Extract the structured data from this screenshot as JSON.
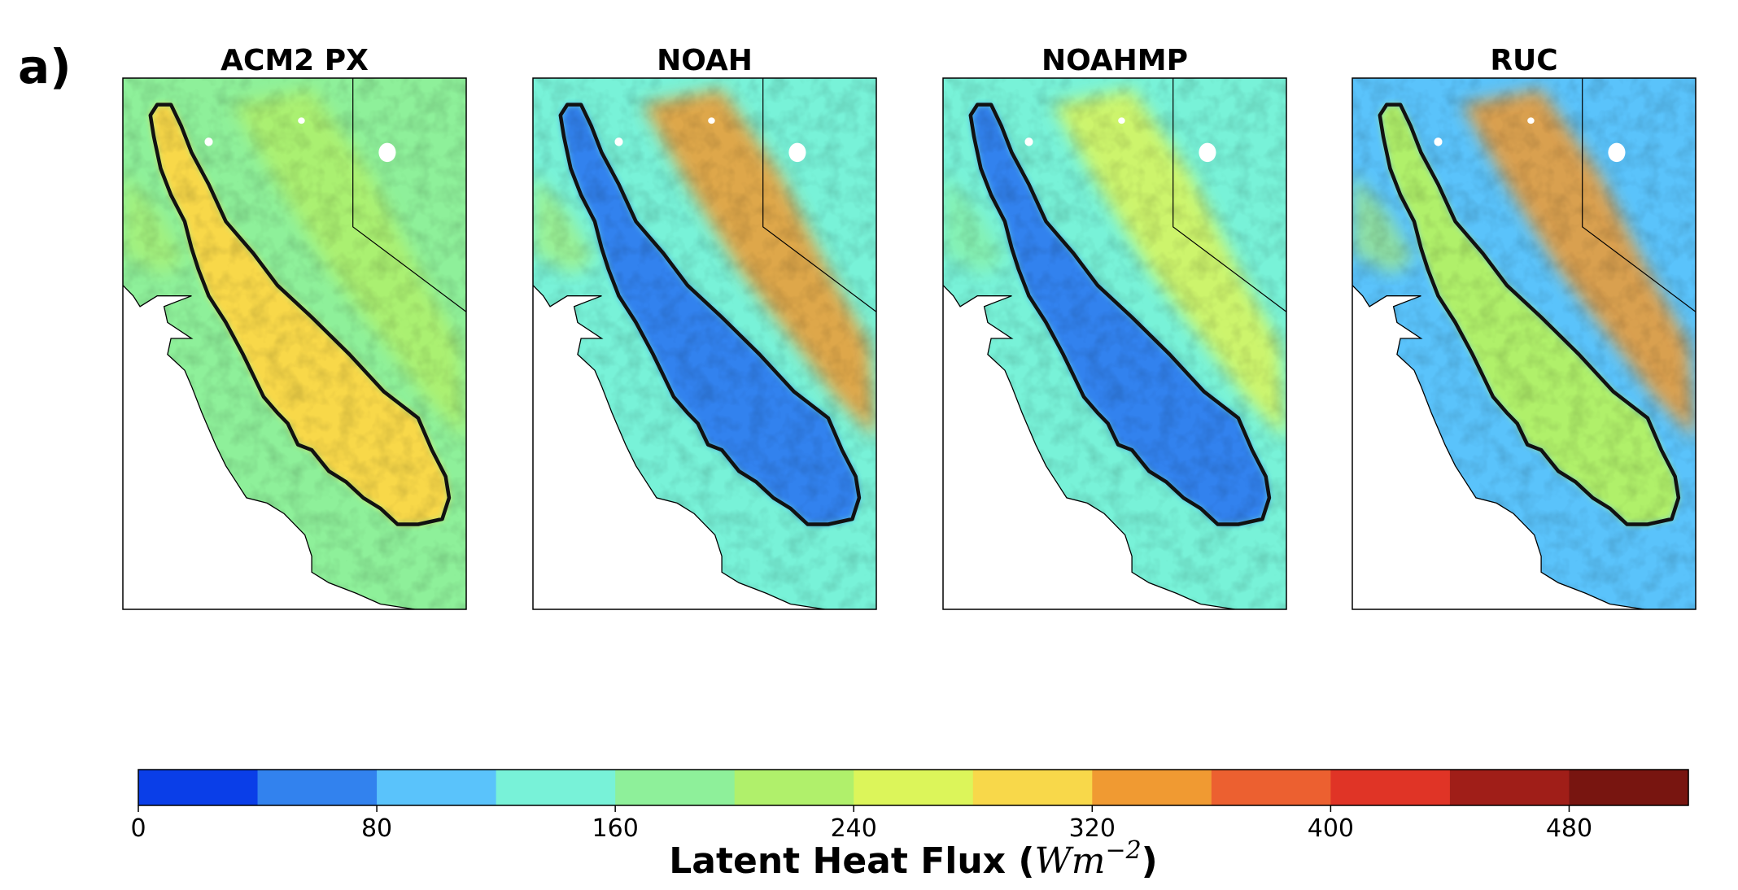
{
  "panel_label": "a)",
  "chart_data": {
    "type": "heatmap",
    "panels": [
      {
        "title": "ACM2 PX",
        "mean_valley_flux": 300,
        "mean_land_flux": 190,
        "mean_mountain_flux": 230
      },
      {
        "title": "NOAH",
        "mean_valley_flux": 70,
        "mean_land_flux": 140,
        "mean_mountain_flux": 330
      },
      {
        "title": "NOAHMP",
        "mean_valley_flux": 40,
        "mean_land_flux": 120,
        "mean_mountain_flux": 260
      },
      {
        "title": "RUC",
        "mean_valley_flux": 220,
        "mean_land_flux": 115,
        "mean_mountain_flux": 345
      }
    ],
    "colorbar": {
      "label": "Latent Heat Flux",
      "unit": "Wm",
      "unit_exponent": "−2",
      "min": 0,
      "max": 520,
      "levels": [
        0,
        40,
        80,
        120,
        160,
        200,
        240,
        280,
        320,
        360,
        400,
        440,
        480,
        520
      ],
      "tick_values": [
        0,
        80,
        160,
        240,
        320,
        400,
        480
      ],
      "tick_labels": [
        "0",
        "80",
        "160",
        "240",
        "320",
        "400",
        "480"
      ],
      "colors": [
        "#0a3ee8",
        "#3282ee",
        "#5ac3fb",
        "#78f2d8",
        "#8ef09a",
        "#b0f06b",
        "#dcf55a",
        "#f8d84a",
        "#f09a32",
        "#ec6030",
        "#e03426",
        "#a01e18",
        "#781510"
      ]
    }
  }
}
